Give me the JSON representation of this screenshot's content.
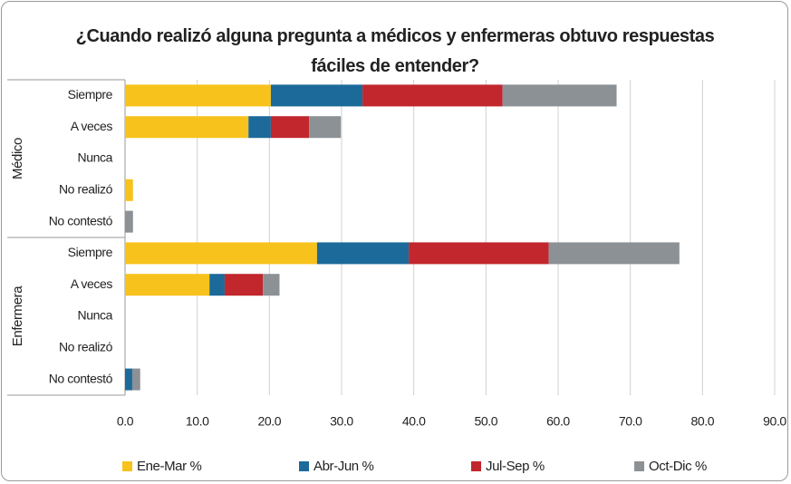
{
  "chart_data": {
    "type": "stacked-bar-horizontal",
    "title": "¿Cuando realizó alguna pregunta a médicos y enfermeras obtuvo respuestas fáciles de entender?",
    "groups": [
      {
        "name": "Médico",
        "categories": [
          "Siempre",
          "A veces",
          "Nunca",
          "No realizó",
          "No contestó"
        ]
      },
      {
        "name": "Enfermera",
        "categories": [
          "Siempre",
          "A veces",
          "Nunca",
          "No realizó",
          "No contestó"
        ]
      }
    ],
    "series": [
      {
        "name": "Ene-Mar %",
        "color": "#f8c21c",
        "values": [
          20.2,
          17.1,
          0,
          1.1,
          0,
          26.6,
          11.7,
          0,
          0,
          0
        ]
      },
      {
        "name": "Abr-Jun %",
        "color": "#1c6a9a",
        "values": [
          12.7,
          3.1,
          0,
          0,
          0,
          12.7,
          2.1,
          0,
          0,
          1.0
        ]
      },
      {
        "name": "Jul-Sep %",
        "color": "#c1272d",
        "values": [
          19.4,
          5.3,
          0,
          0,
          0,
          19.4,
          5.3,
          0,
          0,
          0
        ]
      },
      {
        "name": "Oct-Dic %",
        "color": "#8c9196",
        "values": [
          15.8,
          4.4,
          0,
          0,
          1.1,
          18.1,
          2.3,
          0,
          0,
          1.1
        ]
      }
    ],
    "xlim": [
      0,
      90
    ],
    "xticks": [
      {
        "value": 0,
        "label": "0.0"
      },
      {
        "value": 10,
        "label": "10.0"
      },
      {
        "value": 20,
        "label": "20.0"
      },
      {
        "value": 30,
        "label": "30.0"
      },
      {
        "value": 40,
        "label": "40.0"
      },
      {
        "value": 50,
        "label": "50.0"
      },
      {
        "value": 60,
        "label": "60.0"
      },
      {
        "value": 70,
        "label": "70.0"
      },
      {
        "value": 80,
        "label": "80.0"
      },
      {
        "value": 90,
        "label": "90.0"
      }
    ],
    "grid": true,
    "legend": "bottom"
  }
}
